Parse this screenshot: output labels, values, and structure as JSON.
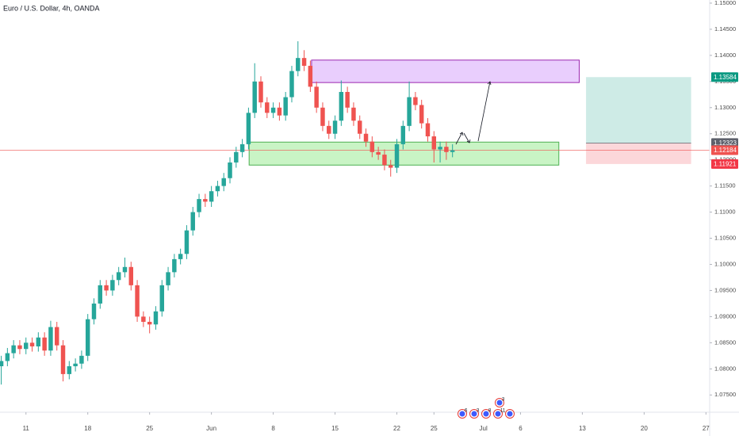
{
  "chart_data": {
    "type": "candlestick",
    "title": "Euro / U.S. Dollar, 4h, OANDA",
    "categories": [
      null,
      null,
      null,
      null,
      null,
      null,
      null,
      null,
      null,
      null,
      null,
      null,
      null,
      null,
      null,
      null,
      null,
      null,
      null,
      null,
      null,
      null,
      null,
      null,
      null,
      null,
      null,
      null,
      null,
      null,
      null,
      null,
      null,
      null,
      null,
      null,
      null,
      null,
      null,
      null,
      null,
      null,
      null,
      null,
      null,
      null,
      null,
      null,
      null,
      null,
      null,
      null,
      null,
      null,
      null,
      null,
      null,
      null,
      null,
      null,
      null,
      null,
      null,
      null,
      null,
      null,
      null,
      null,
      null,
      null,
      null,
      null,
      null,
      null
    ],
    "series": [
      {
        "up_color": "#26a69a",
        "down_color": "#ef5350",
        "open": [
          1.0805,
          1.0815,
          1.083,
          1.0845,
          1.0838,
          1.085,
          1.0843,
          1.086,
          1.0835,
          1.088,
          1.0845,
          1.079,
          1.0805,
          1.081,
          1.0825,
          1.0895,
          1.0925,
          1.096,
          1.095,
          1.097,
          1.0985,
          1.0995,
          1.096,
          1.09,
          1.089,
          1.0885,
          1.091,
          1.096,
          1.0985,
          1.101,
          1.102,
          1.1065,
          1.11,
          1.1125,
          1.112,
          1.114,
          1.115,
          1.1165,
          1.1195,
          1.1215,
          1.123,
          1.129,
          1.135,
          1.131,
          1.129,
          1.13,
          1.1285,
          1.132,
          1.137,
          1.1395,
          1.138,
          1.134,
          1.13,
          1.1265,
          1.125,
          1.1275,
          1.133,
          1.13,
          1.1275,
          1.125,
          1.1235,
          1.1215,
          1.121,
          1.119,
          1.1185,
          1.123,
          1.1265,
          1.132,
          1.1305,
          1.127,
          1.1245,
          1.122,
          1.1225,
          1.1215
        ],
        "high": [
          1.0825,
          1.084,
          1.0855,
          1.0855,
          1.086,
          1.086,
          1.087,
          1.087,
          1.0892,
          1.089,
          1.0855,
          1.0815,
          1.082,
          1.0835,
          1.0905,
          1.0935,
          1.097,
          1.097,
          1.098,
          1.0995,
          1.1013,
          1.1005,
          1.097,
          1.091,
          1.09,
          1.092,
          1.097,
          1.0995,
          1.102,
          1.103,
          1.1075,
          1.111,
          1.1135,
          1.1135,
          1.115,
          1.116,
          1.1175,
          1.1205,
          1.1225,
          1.124,
          1.13,
          1.1385,
          1.136,
          1.132,
          1.131,
          1.131,
          1.133,
          1.138,
          1.1427,
          1.141,
          1.139,
          1.135,
          1.131,
          1.1275,
          1.1285,
          1.1352,
          1.134,
          1.131,
          1.1285,
          1.126,
          1.1245,
          1.1225,
          1.122,
          1.12,
          1.124,
          1.1275,
          1.135,
          1.133,
          1.1315,
          1.128,
          1.1255,
          1.1235,
          1.1235,
          1.123
        ],
        "low": [
          1.077,
          1.0805,
          1.082,
          1.0828,
          1.0828,
          1.0833,
          1.0833,
          1.0825,
          1.0825,
          1.0835,
          1.0776,
          1.078,
          1.0795,
          1.08,
          1.0815,
          1.0885,
          1.0915,
          1.094,
          1.094,
          1.096,
          1.0975,
          1.095,
          1.089,
          1.088,
          1.0868,
          1.0875,
          1.09,
          1.095,
          1.0975,
          1.1,
          1.101,
          1.1055,
          1.109,
          1.111,
          1.111,
          1.113,
          1.114,
          1.1155,
          1.1185,
          1.1205,
          1.122,
          1.128,
          1.13,
          1.128,
          1.128,
          1.1275,
          1.1275,
          1.131,
          1.136,
          1.137,
          1.133,
          1.129,
          1.1255,
          1.124,
          1.124,
          1.1265,
          1.129,
          1.1265,
          1.124,
          1.1225,
          1.1205,
          1.12,
          1.118,
          1.1168,
          1.1175,
          1.122,
          1.1255,
          1.1295,
          1.126,
          1.1235,
          1.1195,
          1.1195,
          1.12,
          1.1205
        ],
        "close": [
          1.0815,
          1.083,
          1.0845,
          1.0838,
          1.085,
          1.0843,
          1.086,
          1.0835,
          1.088,
          1.0845,
          1.079,
          1.0805,
          1.081,
          1.0825,
          1.0895,
          1.0925,
          1.096,
          1.095,
          1.097,
          1.0985,
          1.0995,
          1.096,
          1.09,
          1.089,
          1.0885,
          1.091,
          1.096,
          1.0985,
          1.101,
          1.102,
          1.1065,
          1.11,
          1.1125,
          1.112,
          1.114,
          1.115,
          1.1165,
          1.1195,
          1.1215,
          1.123,
          1.129,
          1.135,
          1.131,
          1.129,
          1.13,
          1.1285,
          1.132,
          1.137,
          1.1395,
          1.138,
          1.134,
          1.13,
          1.1265,
          1.125,
          1.1275,
          1.133,
          1.13,
          1.1275,
          1.125,
          1.1235,
          1.1215,
          1.121,
          1.119,
          1.1185,
          1.123,
          1.1265,
          1.132,
          1.1305,
          1.127,
          1.1245,
          1.122,
          1.1225,
          1.1215,
          1.12184
        ]
      }
    ],
    "xlim": [
      -0.2,
      114.6
    ],
    "xticks": [
      {
        "value": 4,
        "label": "11"
      },
      {
        "value": 14,
        "label": "18"
      },
      {
        "value": 24,
        "label": "25"
      },
      {
        "value": 34,
        "label": "Jun"
      },
      {
        "value": 44,
        "label": "8"
      },
      {
        "value": 54,
        "label": "15"
      },
      {
        "value": 64,
        "label": "22"
      },
      {
        "value": 70,
        "label": "25"
      },
      {
        "value": 78,
        "label": "Jul"
      },
      {
        "value": 84,
        "label": "6"
      },
      {
        "value": 94,
        "label": "13"
      },
      {
        "value": 104,
        "label": "20"
      },
      {
        "value": 114,
        "label": "27"
      }
    ],
    "ylim": [
      1.0717,
      1.1506
    ],
    "yticks": [
      {
        "value": 1.075,
        "label": "1.07500"
      },
      {
        "value": 1.08,
        "label": "1.08000"
      },
      {
        "value": 1.085,
        "label": "1.08500"
      },
      {
        "value": 1.09,
        "label": "1.09000"
      },
      {
        "value": 1.095,
        "label": "1.09500"
      },
      {
        "value": 1.1,
        "label": "1.10000"
      },
      {
        "value": 1.105,
        "label": "1.10500"
      },
      {
        "value": 1.11,
        "label": "1.11000"
      },
      {
        "value": 1.115,
        "label": "1.11500"
      },
      {
        "value": 1.12,
        "label": "1.12000"
      },
      {
        "value": 1.125,
        "label": "1.12500"
      },
      {
        "value": 1.13,
        "label": "1.13000"
      },
      {
        "value": 1.135,
        "label": "1.13500"
      },
      {
        "value": 1.14,
        "label": "1.14000"
      },
      {
        "value": 1.145,
        "label": "1.14500"
      },
      {
        "value": 1.15,
        "label": "1.15000"
      }
    ],
    "grid": false,
    "current_price": 1.12184,
    "current_price_color": "#ef5350",
    "zones": [
      {
        "start": 50.2,
        "end": 93.5,
        "top": 1.1391,
        "bottom": 1.1348,
        "fill": "#e1bdfc",
        "stroke": "#9c27b0"
      },
      {
        "start": 40.1,
        "end": 90.2,
        "top": 1.1234,
        "bottom": 1.119,
        "fill": "#b7f0b1",
        "stroke": "#4caf50"
      }
    ],
    "position": {
      "start": 94.6,
      "end": 111.6,
      "target": 1.13584,
      "entry": 1.12323,
      "stop": 1.11921,
      "target_color": "#089981",
      "entry_color": "#5d606b",
      "stop_color": "#f23645"
    },
    "events": [
      "6",
      "3",
      "8",
      "11",
      "3"
    ]
  }
}
